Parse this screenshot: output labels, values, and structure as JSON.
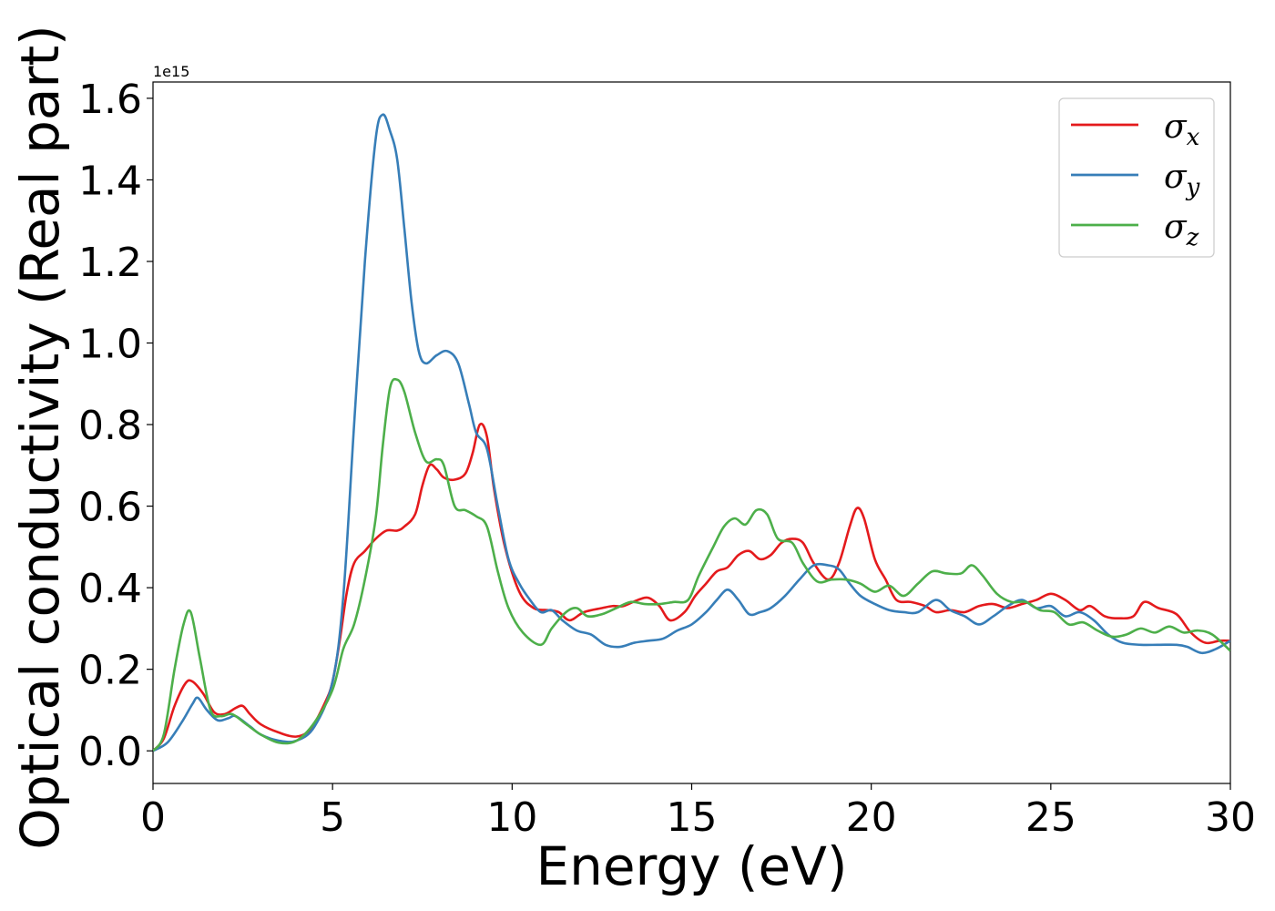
{
  "chart_data": {
    "type": "line",
    "xlabel": "Energy (eV)",
    "ylabel": "Optical conductivity (Real part)",
    "y_offset_label": "1e15",
    "xlim": [
      0,
      30
    ],
    "ylim": [
      -0.08,
      1.64
    ],
    "x_ticks": [
      0,
      5,
      10,
      15,
      20,
      25,
      30
    ],
    "y_ticks": [
      0.0,
      0.2,
      0.4,
      0.6,
      0.8,
      1.0,
      1.2,
      1.4,
      1.6
    ],
    "y_tick_labels": [
      "0.0",
      "0.2",
      "0.4",
      "0.6",
      "0.8",
      "1.0",
      "1.2",
      "1.4",
      "1.6"
    ],
    "grid": false,
    "legend_position": "top-right",
    "series": [
      {
        "name": "σx",
        "legend_base": "σ",
        "legend_sub": "x",
        "color": "#e41a1c",
        "points": [
          [
            0,
            0
          ],
          [
            0.3,
            0.03
          ],
          [
            0.6,
            0.11
          ],
          [
            0.9,
            0.165
          ],
          [
            1.1,
            0.17
          ],
          [
            1.4,
            0.14
          ],
          [
            1.7,
            0.095
          ],
          [
            2.0,
            0.09
          ],
          [
            2.3,
            0.105
          ],
          [
            2.5,
            0.11
          ],
          [
            2.7,
            0.09
          ],
          [
            3.0,
            0.065
          ],
          [
            3.5,
            0.045
          ],
          [
            4.0,
            0.035
          ],
          [
            4.4,
            0.055
          ],
          [
            4.8,
            0.12
          ],
          [
            5.0,
            0.17
          ],
          [
            5.2,
            0.27
          ],
          [
            5.4,
            0.39
          ],
          [
            5.6,
            0.46
          ],
          [
            5.9,
            0.49
          ],
          [
            6.2,
            0.52
          ],
          [
            6.5,
            0.54
          ],
          [
            6.8,
            0.54
          ],
          [
            7.0,
            0.55
          ],
          [
            7.3,
            0.58
          ],
          [
            7.5,
            0.65
          ],
          [
            7.7,
            0.7
          ],
          [
            7.9,
            0.69
          ],
          [
            8.1,
            0.67
          ],
          [
            8.4,
            0.665
          ],
          [
            8.7,
            0.68
          ],
          [
            8.9,
            0.73
          ],
          [
            9.1,
            0.8
          ],
          [
            9.3,
            0.77
          ],
          [
            9.5,
            0.64
          ],
          [
            9.8,
            0.5
          ],
          [
            10.2,
            0.39
          ],
          [
            10.6,
            0.35
          ],
          [
            11.0,
            0.345
          ],
          [
            11.3,
            0.34
          ],
          [
            11.6,
            0.32
          ],
          [
            12.0,
            0.34
          ],
          [
            12.5,
            0.35
          ],
          [
            12.8,
            0.355
          ],
          [
            13.1,
            0.355
          ],
          [
            13.5,
            0.37
          ],
          [
            13.8,
            0.375
          ],
          [
            14.1,
            0.355
          ],
          [
            14.4,
            0.32
          ],
          [
            14.8,
            0.34
          ],
          [
            15.1,
            0.38
          ],
          [
            15.4,
            0.41
          ],
          [
            15.7,
            0.44
          ],
          [
            16.0,
            0.45
          ],
          [
            16.3,
            0.48
          ],
          [
            16.6,
            0.49
          ],
          [
            16.9,
            0.47
          ],
          [
            17.2,
            0.48
          ],
          [
            17.5,
            0.51
          ],
          [
            17.8,
            0.52
          ],
          [
            18.1,
            0.51
          ],
          [
            18.4,
            0.46
          ],
          [
            18.8,
            0.42
          ],
          [
            19.1,
            0.46
          ],
          [
            19.4,
            0.55
          ],
          [
            19.6,
            0.595
          ],
          [
            19.8,
            0.57
          ],
          [
            20.1,
            0.47
          ],
          [
            20.4,
            0.42
          ],
          [
            20.7,
            0.37
          ],
          [
            21.1,
            0.365
          ],
          [
            21.5,
            0.355
          ],
          [
            21.8,
            0.34
          ],
          [
            22.2,
            0.345
          ],
          [
            22.6,
            0.34
          ],
          [
            23.0,
            0.355
          ],
          [
            23.4,
            0.36
          ],
          [
            23.8,
            0.35
          ],
          [
            24.2,
            0.36
          ],
          [
            24.6,
            0.37
          ],
          [
            25.0,
            0.385
          ],
          [
            25.4,
            0.37
          ],
          [
            25.8,
            0.345
          ],
          [
            26.1,
            0.355
          ],
          [
            26.5,
            0.33
          ],
          [
            26.9,
            0.325
          ],
          [
            27.3,
            0.33
          ],
          [
            27.6,
            0.365
          ],
          [
            28.0,
            0.35
          ],
          [
            28.5,
            0.335
          ],
          [
            28.9,
            0.29
          ],
          [
            29.3,
            0.265
          ],
          [
            29.7,
            0.27
          ],
          [
            30,
            0.27
          ]
        ]
      },
      {
        "name": "σy",
        "legend_base": "σ",
        "legend_sub": "y",
        "color": "#377eb8",
        "points": [
          [
            0,
            0
          ],
          [
            0.4,
            0.02
          ],
          [
            0.8,
            0.07
          ],
          [
            1.1,
            0.115
          ],
          [
            1.25,
            0.13
          ],
          [
            1.5,
            0.1
          ],
          [
            1.8,
            0.075
          ],
          [
            2.1,
            0.08
          ],
          [
            2.3,
            0.085
          ],
          [
            2.7,
            0.06
          ],
          [
            3.0,
            0.04
          ],
          [
            3.5,
            0.025
          ],
          [
            4.0,
            0.025
          ],
          [
            4.5,
            0.06
          ],
          [
            5.0,
            0.17
          ],
          [
            5.3,
            0.38
          ],
          [
            5.6,
            0.8
          ],
          [
            5.9,
            1.2
          ],
          [
            6.2,
            1.5
          ],
          [
            6.4,
            1.56
          ],
          [
            6.6,
            1.52
          ],
          [
            6.8,
            1.45
          ],
          [
            7.0,
            1.28
          ],
          [
            7.2,
            1.1
          ],
          [
            7.4,
            0.98
          ],
          [
            7.6,
            0.95
          ],
          [
            7.9,
            0.97
          ],
          [
            8.2,
            0.98
          ],
          [
            8.5,
            0.95
          ],
          [
            8.8,
            0.85
          ],
          [
            9.0,
            0.78
          ],
          [
            9.3,
            0.74
          ],
          [
            9.6,
            0.6
          ],
          [
            9.9,
            0.47
          ],
          [
            10.2,
            0.41
          ],
          [
            10.5,
            0.37
          ],
          [
            10.8,
            0.34
          ],
          [
            11.1,
            0.345
          ],
          [
            11.4,
            0.32
          ],
          [
            11.8,
            0.295
          ],
          [
            12.2,
            0.285
          ],
          [
            12.6,
            0.26
          ],
          [
            13.0,
            0.255
          ],
          [
            13.4,
            0.265
          ],
          [
            13.8,
            0.27
          ],
          [
            14.2,
            0.275
          ],
          [
            14.6,
            0.295
          ],
          [
            15.0,
            0.31
          ],
          [
            15.4,
            0.34
          ],
          [
            15.7,
            0.37
          ],
          [
            16.0,
            0.395
          ],
          [
            16.3,
            0.37
          ],
          [
            16.6,
            0.335
          ],
          [
            16.9,
            0.34
          ],
          [
            17.2,
            0.35
          ],
          [
            17.6,
            0.38
          ],
          [
            18.0,
            0.42
          ],
          [
            18.4,
            0.455
          ],
          [
            18.8,
            0.455
          ],
          [
            19.1,
            0.445
          ],
          [
            19.4,
            0.41
          ],
          [
            19.7,
            0.38
          ],
          [
            20.1,
            0.36
          ],
          [
            20.5,
            0.345
          ],
          [
            20.9,
            0.34
          ],
          [
            21.3,
            0.34
          ],
          [
            21.8,
            0.37
          ],
          [
            22.2,
            0.345
          ],
          [
            22.6,
            0.33
          ],
          [
            23.0,
            0.31
          ],
          [
            23.4,
            0.33
          ],
          [
            23.8,
            0.355
          ],
          [
            24.2,
            0.37
          ],
          [
            24.6,
            0.35
          ],
          [
            25.0,
            0.355
          ],
          [
            25.4,
            0.33
          ],
          [
            25.8,
            0.34
          ],
          [
            26.2,
            0.32
          ],
          [
            26.6,
            0.285
          ],
          [
            27.0,
            0.265
          ],
          [
            27.5,
            0.26
          ],
          [
            28.0,
            0.26
          ],
          [
            28.5,
            0.26
          ],
          [
            28.8,
            0.255
          ],
          [
            29.2,
            0.24
          ],
          [
            29.6,
            0.25
          ],
          [
            30,
            0.27
          ]
        ]
      },
      {
        "name": "σz",
        "legend_base": "σ",
        "legend_sub": "z",
        "color": "#4daf4a",
        "points": [
          [
            0,
            0
          ],
          [
            0.3,
            0.04
          ],
          [
            0.6,
            0.2
          ],
          [
            0.85,
            0.31
          ],
          [
            1.05,
            0.34
          ],
          [
            1.3,
            0.23
          ],
          [
            1.6,
            0.1
          ],
          [
            1.9,
            0.085
          ],
          [
            2.2,
            0.09
          ],
          [
            2.6,
            0.065
          ],
          [
            3.0,
            0.04
          ],
          [
            3.5,
            0.02
          ],
          [
            4.0,
            0.025
          ],
          [
            4.5,
            0.07
          ],
          [
            5.0,
            0.15
          ],
          [
            5.3,
            0.25
          ],
          [
            5.6,
            0.31
          ],
          [
            5.9,
            0.42
          ],
          [
            6.2,
            0.57
          ],
          [
            6.4,
            0.75
          ],
          [
            6.6,
            0.89
          ],
          [
            6.8,
            0.91
          ],
          [
            7.0,
            0.88
          ],
          [
            7.3,
            0.78
          ],
          [
            7.6,
            0.71
          ],
          [
            7.9,
            0.715
          ],
          [
            8.1,
            0.7
          ],
          [
            8.4,
            0.6
          ],
          [
            8.7,
            0.59
          ],
          [
            9.0,
            0.575
          ],
          [
            9.3,
            0.55
          ],
          [
            9.6,
            0.44
          ],
          [
            9.9,
            0.35
          ],
          [
            10.3,
            0.29
          ],
          [
            10.8,
            0.26
          ],
          [
            11.1,
            0.3
          ],
          [
            11.5,
            0.34
          ],
          [
            11.8,
            0.35
          ],
          [
            12.1,
            0.33
          ],
          [
            12.5,
            0.335
          ],
          [
            12.9,
            0.35
          ],
          [
            13.3,
            0.365
          ],
          [
            13.7,
            0.36
          ],
          [
            14.1,
            0.36
          ],
          [
            14.5,
            0.365
          ],
          [
            14.9,
            0.37
          ],
          [
            15.2,
            0.43
          ],
          [
            15.6,
            0.5
          ],
          [
            15.9,
            0.55
          ],
          [
            16.2,
            0.57
          ],
          [
            16.5,
            0.555
          ],
          [
            16.8,
            0.59
          ],
          [
            17.1,
            0.58
          ],
          [
            17.4,
            0.52
          ],
          [
            17.8,
            0.51
          ],
          [
            18.1,
            0.46
          ],
          [
            18.5,
            0.415
          ],
          [
            18.9,
            0.42
          ],
          [
            19.3,
            0.42
          ],
          [
            19.7,
            0.41
          ],
          [
            20.1,
            0.39
          ],
          [
            20.5,
            0.405
          ],
          [
            20.9,
            0.38
          ],
          [
            21.3,
            0.41
          ],
          [
            21.7,
            0.44
          ],
          [
            22.1,
            0.435
          ],
          [
            22.5,
            0.435
          ],
          [
            22.8,
            0.455
          ],
          [
            23.1,
            0.43
          ],
          [
            23.5,
            0.385
          ],
          [
            23.9,
            0.365
          ],
          [
            24.3,
            0.365
          ],
          [
            24.7,
            0.345
          ],
          [
            25.1,
            0.34
          ],
          [
            25.5,
            0.31
          ],
          [
            25.9,
            0.315
          ],
          [
            26.3,
            0.295
          ],
          [
            26.7,
            0.28
          ],
          [
            27.1,
            0.285
          ],
          [
            27.5,
            0.3
          ],
          [
            27.9,
            0.29
          ],
          [
            28.3,
            0.305
          ],
          [
            28.7,
            0.29
          ],
          [
            29.1,
            0.295
          ],
          [
            29.5,
            0.285
          ],
          [
            30,
            0.245
          ]
        ]
      }
    ]
  }
}
